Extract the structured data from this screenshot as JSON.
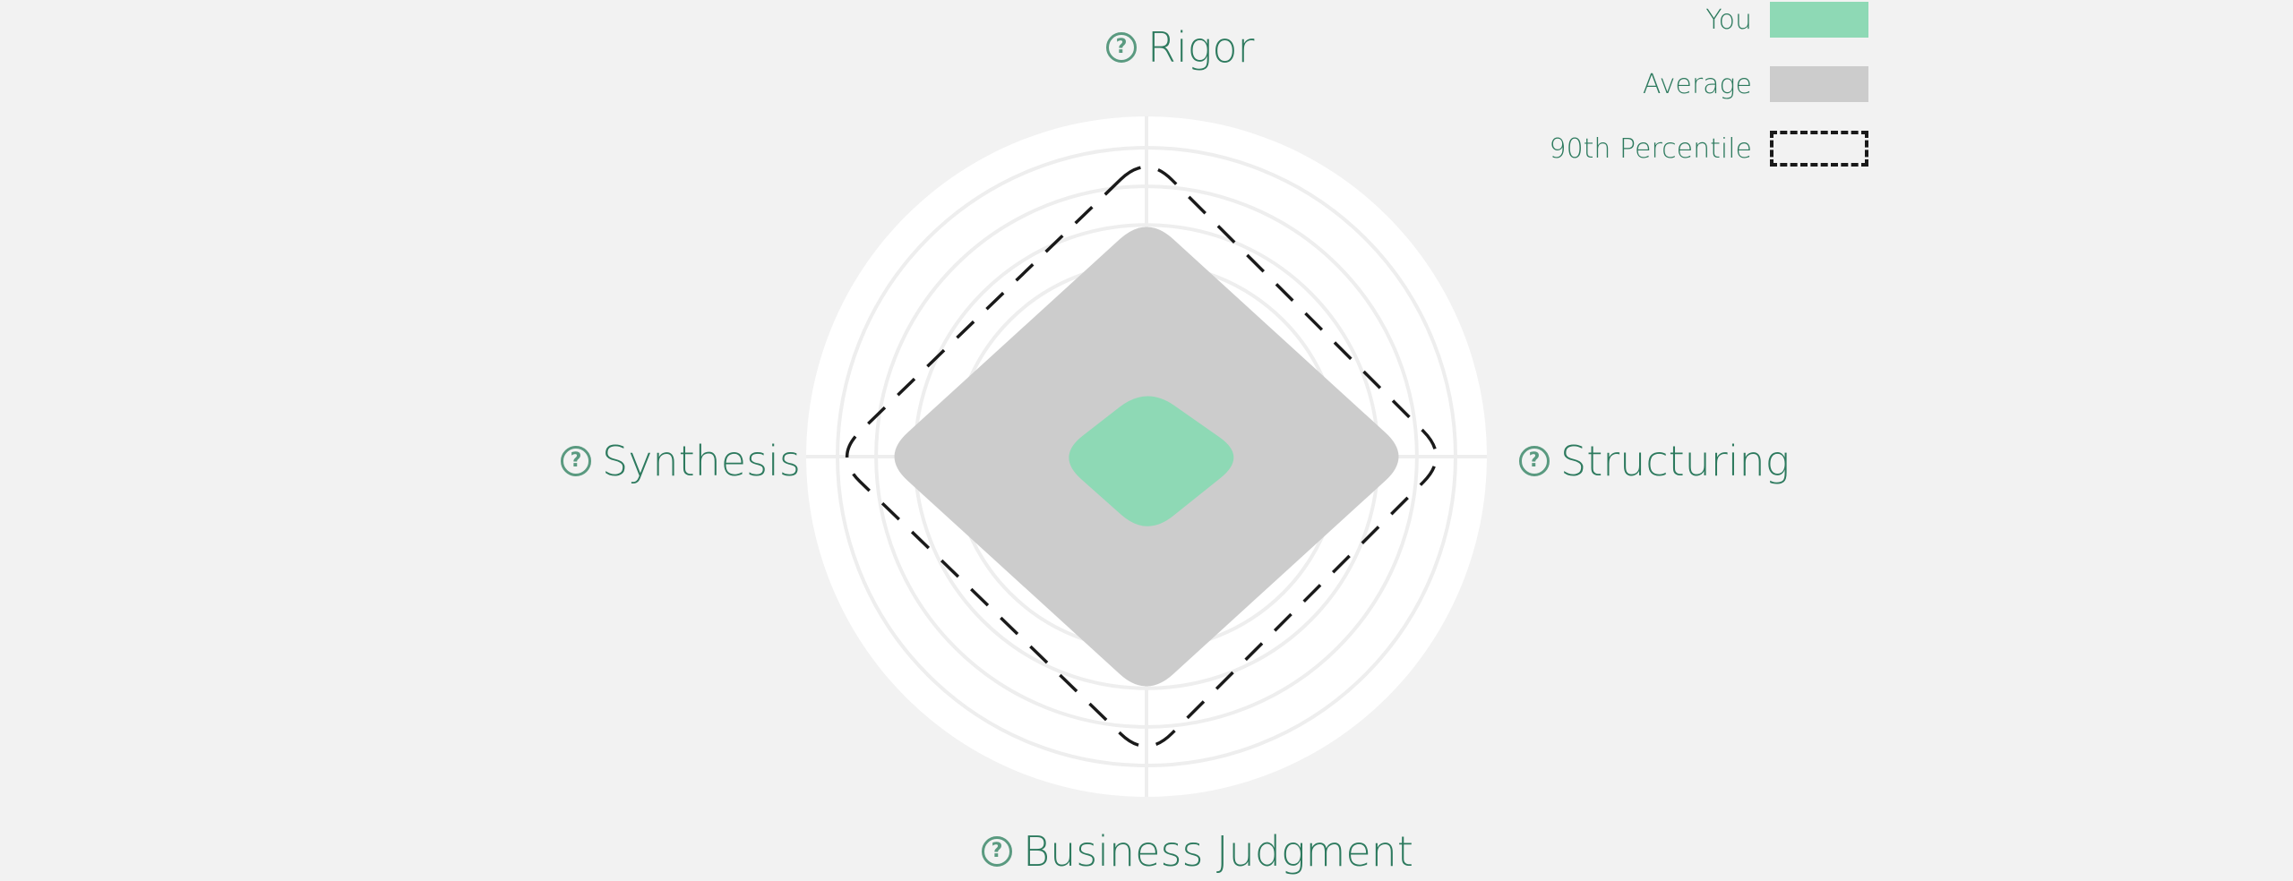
{
  "chart_data": {
    "type": "radar",
    "axes": [
      {
        "name": "Rigor",
        "key": "rigor"
      },
      {
        "name": "Structuring",
        "key": "structuring"
      },
      {
        "name": "Business Judgment",
        "key": "business_judgment"
      },
      {
        "name": "Synthesis",
        "key": "synthesis"
      }
    ],
    "scale": {
      "min": 0,
      "max": 10,
      "rings": 8
    },
    "series": [
      {
        "name": "90th Percentile",
        "values": [
          9,
          9,
          9,
          9.3
        ],
        "color": "#1a1a1a",
        "style": "dashed-outline"
      },
      {
        "name": "Average",
        "values": [
          7.2,
          7.9,
          7.2,
          7.9
        ],
        "color": "#cccccc",
        "style": "filled"
      },
      {
        "name": "You",
        "values": [
          2.1,
          3,
          2.4,
          2.7
        ],
        "color": "#8ed9b5",
        "style": "filled"
      }
    ],
    "legend_position": "top-right",
    "grid": true
  },
  "axis_labels": {
    "rigor": "Rigor",
    "structuring": "Structuring",
    "business_judgment": "Business Judgment",
    "synthesis": "Synthesis"
  },
  "help_icon_glyph": "?",
  "legend": {
    "you": "You",
    "average": "Average",
    "percentile": "90th Percentile"
  },
  "colors": {
    "background": "#f2f2f2",
    "plot_background": "#ffffff",
    "gridline": "#eeeeee",
    "label_text": "#2d7a5e",
    "you": "#8ed9b5",
    "average": "#cccccc",
    "percentile": "#1a1a1a"
  }
}
